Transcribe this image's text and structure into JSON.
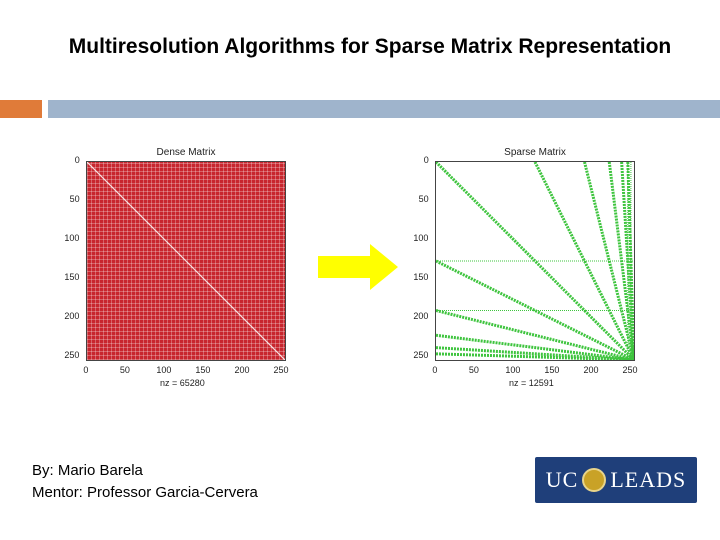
{
  "slide": {
    "title": "Multiresolution Algorithms for Sparse Matrix Representation",
    "byline": "By: Mario Barela",
    "mentor": "Mentor: Professor Garcia-Cervera"
  },
  "colors": {
    "accent_bar": "#e07b39",
    "header_bar": "#9fb4cc",
    "dense_fill": "#c8262e",
    "sparse_marks": "#3ec43e",
    "arrow": "#ffff00",
    "logo_bg": "#1f3f7a"
  },
  "logo": {
    "left_text": "UC",
    "right_text": "LEADS"
  },
  "chart_data": [
    {
      "type": "heatmap",
      "title": "Dense Matrix",
      "x_ticks": [
        "0",
        "50",
        "100",
        "150",
        "200",
        "250"
      ],
      "y_ticks": [
        "0",
        "50",
        "100",
        "150",
        "200",
        "250"
      ],
      "xlabel": "nz = 65280",
      "xlim": [
        0,
        256
      ],
      "ylim": [
        0,
        256
      ],
      "pattern": "all entries nonzero except main diagonal"
    },
    {
      "type": "heatmap",
      "title": "Sparse Matrix",
      "x_ticks": [
        "0",
        "50",
        "100",
        "150",
        "200",
        "250"
      ],
      "y_ticks": [
        "0",
        "50",
        "100",
        "150",
        "200",
        "250"
      ],
      "xlabel": "nz = 12591",
      "xlim": [
        0,
        256
      ],
      "ylim": [
        0,
        256
      ],
      "pattern": "multiresolution bands converging to bottom-right corner",
      "bands": [
        {
          "from": [
            0,
            0
          ],
          "to": [
            256,
            256
          ]
        },
        {
          "from": [
            128,
            0
          ],
          "to": [
            256,
            256
          ]
        },
        {
          "from": [
            192,
            0
          ],
          "to": [
            256,
            256
          ]
        },
        {
          "from": [
            224,
            0
          ],
          "to": [
            256,
            256
          ]
        },
        {
          "from": [
            240,
            0
          ],
          "to": [
            256,
            256
          ]
        },
        {
          "from": [
            248,
            0
          ],
          "to": [
            256,
            256
          ]
        },
        {
          "from": [
            0,
            128
          ],
          "to": [
            256,
            256
          ]
        },
        {
          "from": [
            0,
            192
          ],
          "to": [
            256,
            256
          ]
        },
        {
          "from": [
            0,
            224
          ],
          "to": [
            256,
            256
          ]
        },
        {
          "from": [
            0,
            240
          ],
          "to": [
            256,
            256
          ]
        },
        {
          "from": [
            0,
            248
          ],
          "to": [
            256,
            256
          ]
        }
      ],
      "horizontal_lines_y": [
        128,
        192
      ],
      "vertical_lines_x": [
        248,
        252
      ]
    }
  ]
}
